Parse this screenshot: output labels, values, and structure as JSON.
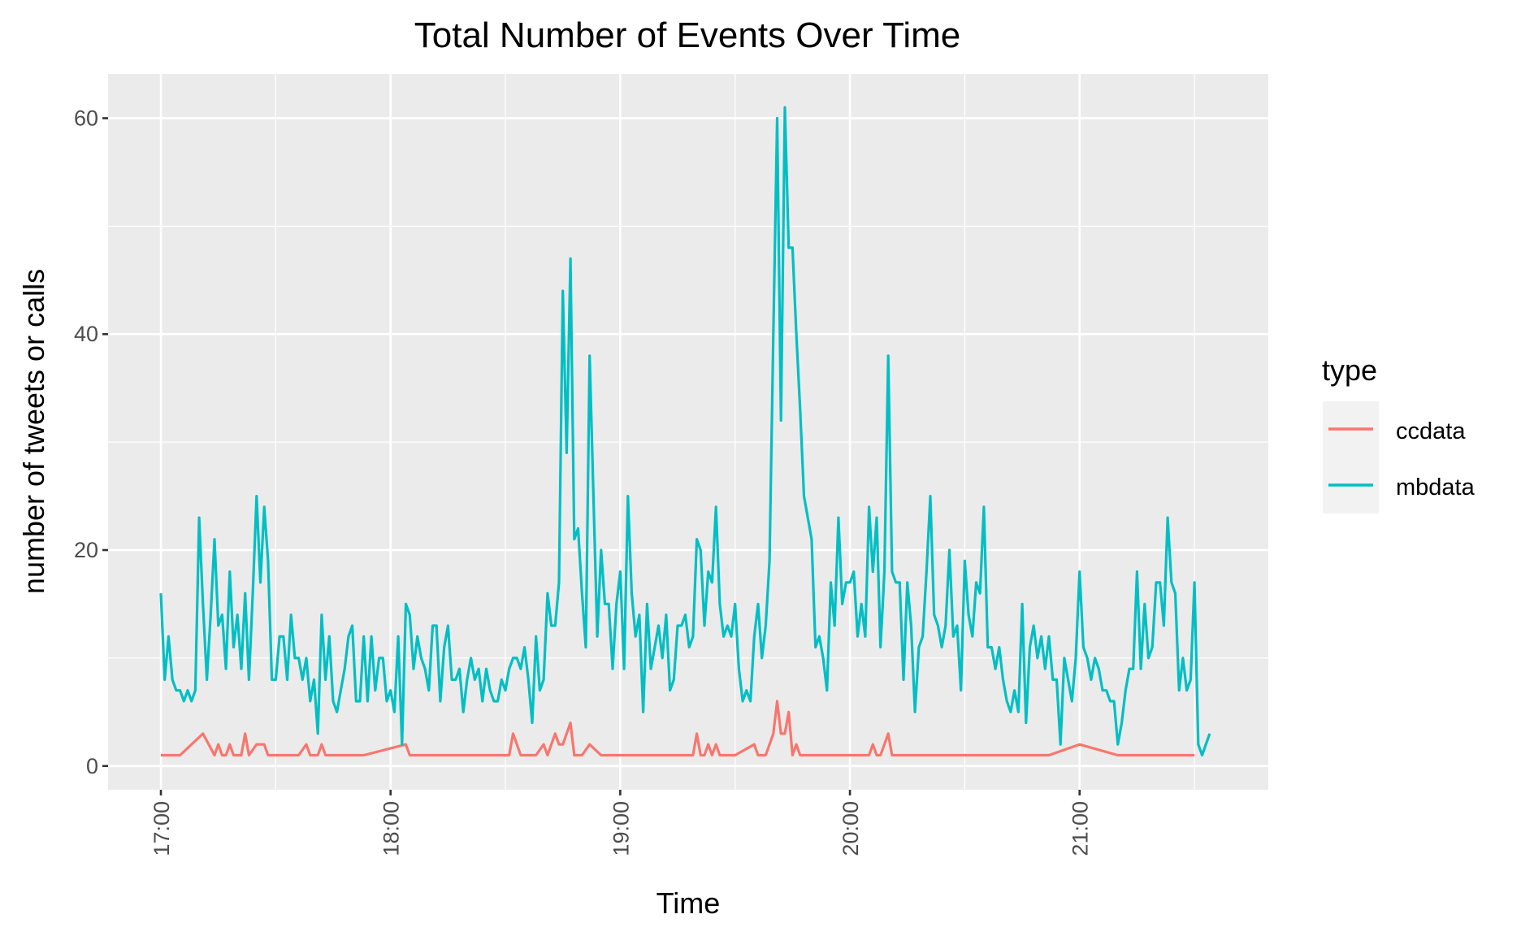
{
  "chart_data": {
    "type": "line",
    "title": "Total Number of Events Over Time",
    "xlabel": "Time",
    "ylabel": "number of tweets or calls",
    "x_unit": "minutes after 17:00",
    "xlim": [
      -13.8,
      289.3
    ],
    "ylim": [
      -2.2,
      64.1
    ],
    "x_ticks": [
      {
        "value": 0,
        "label": "17:00"
      },
      {
        "value": 60,
        "label": "18:00"
      },
      {
        "value": 120,
        "label": "19:00"
      },
      {
        "value": 180,
        "label": "20:00"
      },
      {
        "value": 240,
        "label": "21:00"
      }
    ],
    "x_minor_ticks": [
      30,
      90,
      150,
      210,
      270
    ],
    "y_ticks": [
      {
        "value": 0,
        "label": "0"
      },
      {
        "value": 20,
        "label": "20"
      },
      {
        "value": 40,
        "label": "40"
      },
      {
        "value": 60,
        "label": "60"
      }
    ],
    "y_minor_ticks": [
      10,
      30,
      50
    ],
    "grid": true,
    "legend": {
      "title": "type",
      "placement": "right"
    },
    "series": [
      {
        "name": "ccdata",
        "color": "#F8766D",
        "points": [
          [
            0,
            1
          ],
          [
            5,
            1
          ],
          [
            11,
            3
          ],
          [
            14,
            1
          ],
          [
            15,
            2
          ],
          [
            16,
            1
          ],
          [
            17,
            1
          ],
          [
            18,
            2
          ],
          [
            19,
            1
          ],
          [
            21,
            1
          ],
          [
            22,
            3
          ],
          [
            23,
            1
          ],
          [
            25,
            2
          ],
          [
            27,
            2
          ],
          [
            28,
            1
          ],
          [
            36,
            1
          ],
          [
            38,
            2
          ],
          [
            39,
            1
          ],
          [
            41,
            1
          ],
          [
            42,
            2
          ],
          [
            43,
            1
          ],
          [
            53,
            1
          ],
          [
            64,
            2
          ],
          [
            65,
            1
          ],
          [
            91,
            1
          ],
          [
            92,
            3
          ],
          [
            94,
            1
          ],
          [
            98,
            1
          ],
          [
            100,
            2
          ],
          [
            101,
            1
          ],
          [
            103,
            3
          ],
          [
            104,
            2
          ],
          [
            105,
            2
          ],
          [
            107,
            4
          ],
          [
            108,
            1
          ],
          [
            110,
            1
          ],
          [
            112,
            2
          ],
          [
            115,
            1
          ],
          [
            139,
            1
          ],
          [
            140,
            3
          ],
          [
            141,
            1
          ],
          [
            142,
            1
          ],
          [
            143,
            2
          ],
          [
            144,
            1
          ],
          [
            145,
            2
          ],
          [
            146,
            1
          ],
          [
            150,
            1
          ],
          [
            155,
            2
          ],
          [
            156,
            1
          ],
          [
            158,
            1
          ],
          [
            160,
            3
          ],
          [
            161,
            6
          ],
          [
            162,
            3
          ],
          [
            163,
            3
          ],
          [
            164,
            5
          ],
          [
            165,
            1
          ],
          [
            166,
            2
          ],
          [
            167,
            1
          ],
          [
            185,
            1
          ],
          [
            186,
            2
          ],
          [
            187,
            1
          ],
          [
            188,
            1
          ],
          [
            190,
            3
          ],
          [
            191,
            1
          ],
          [
            232,
            1
          ],
          [
            240,
            2
          ],
          [
            250,
            1
          ],
          [
            270,
            1
          ]
        ]
      },
      {
        "name": "mbdata",
        "color": "#00BFC4",
        "start": 0,
        "step": 1,
        "values": [
          16,
          8,
          12,
          8,
          7,
          7,
          6,
          7,
          6,
          7,
          23,
          15,
          8,
          14,
          21,
          13,
          14,
          9,
          18,
          11,
          14,
          9,
          16,
          8,
          16,
          25,
          17,
          24,
          19,
          8,
          8,
          12,
          12,
          8,
          14,
          10,
          10,
          8,
          10,
          6,
          8,
          3,
          14,
          8,
          12,
          6,
          5,
          7,
          9,
          12,
          13,
          6,
          6,
          12,
          6,
          12,
          7,
          10,
          10,
          6,
          7,
          5,
          12,
          2,
          15,
          14,
          9,
          12,
          10,
          9,
          7,
          13,
          13,
          6,
          11,
          13,
          8,
          8,
          9,
          5,
          8,
          10,
          8,
          9,
          6,
          9,
          7,
          6,
          6,
          8,
          7,
          9,
          10,
          10,
          9,
          11,
          8,
          4,
          12,
          7,
          8,
          16,
          13,
          13,
          17,
          44,
          29,
          47,
          21,
          22,
          16,
          11,
          38,
          25,
          12,
          20,
          15,
          15,
          9,
          15,
          18,
          9,
          25,
          16,
          12,
          14,
          5,
          15,
          9,
          11,
          13,
          10,
          14,
          7,
          8,
          13,
          13,
          14,
          11,
          12,
          21,
          20,
          13,
          18,
          17,
          24,
          15,
          12,
          13,
          12,
          15,
          9,
          6,
          7,
          6,
          12,
          15,
          10,
          13,
          19,
          40,
          60,
          32,
          61,
          48,
          48,
          40,
          33,
          25,
          23,
          21,
          11,
          12,
          10,
          7,
          17,
          13,
          23,
          15,
          17,
          17,
          18,
          12,
          15,
          12,
          24,
          18,
          23,
          11,
          18,
          38,
          18,
          17,
          17,
          8,
          17,
          13,
          5,
          11,
          12,
          18,
          25,
          14,
          13,
          11,
          13,
          20,
          12,
          13,
          7,
          19,
          14,
          12,
          17,
          16,
          24,
          11,
          11,
          9,
          11,
          8,
          6,
          5,
          7,
          5,
          15,
          4,
          11,
          13,
          10,
          12,
          9,
          12,
          8,
          8,
          2,
          10,
          8,
          6,
          10,
          18,
          11,
          10,
          8,
          10,
          9,
          7,
          7,
          6,
          6,
          2,
          4,
          7,
          9,
          9,
          18,
          9,
          15,
          10,
          11,
          17,
          17,
          13,
          23,
          17,
          16,
          7,
          10,
          7,
          8,
          17,
          2,
          1,
          2,
          3
        ]
      }
    ]
  }
}
